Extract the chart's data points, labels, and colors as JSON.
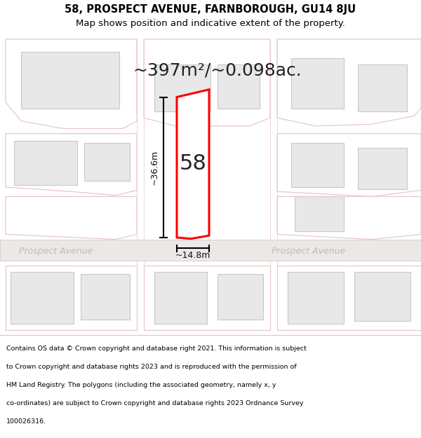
{
  "title": "58, PROSPECT AVENUE, FARNBOROUGH, GU14 8JU",
  "subtitle": "Map shows position and indicative extent of the property.",
  "area_text": "~397m²/~0.098ac.",
  "label_58": "58",
  "dim_width": "~14.8m",
  "dim_height": "~36.6m",
  "footer_lines": [
    "Contains OS data © Crown copyright and database right 2021. This information is subject",
    "to Crown copyright and database rights 2023 and is reproduced with the permission of",
    "HM Land Registry. The polygons (including the associated geometry, namely x, y",
    "co-ordinates) are subject to Crown copyright and database rights 2023 Ordnance Survey",
    "100026316."
  ],
  "bg_color": "#f2eded",
  "map_bg": "#f2eded",
  "footer_bg": "#ffffff",
  "road_color": "#e8c8c8",
  "building_fill": "#e8e8e8",
  "building_edge": "#c8c8c8",
  "highlight_color": "#ff0000",
  "text_color": "#222222",
  "street_text_color": "#bbbbbb",
  "dim_color": "#111111",
  "title_fontsize": 10.5,
  "subtitle_fontsize": 9.5,
  "area_fontsize": 18,
  "label_fontsize": 22,
  "dim_fontsize": 9,
  "footer_fontsize": 6.8,
  "street_fontsize": 9
}
